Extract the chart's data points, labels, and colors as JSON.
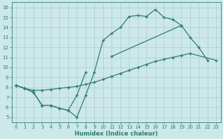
{
  "xlabel": "Humidex (Indice chaleur)",
  "bg_color": "#cce8e8",
  "grid_color": "#b8d8d8",
  "line_color": "#2e7d6e",
  "xlim": [
    -0.5,
    23.5
  ],
  "ylim": [
    4.5,
    16.5
  ],
  "xticks": [
    0,
    1,
    2,
    3,
    4,
    5,
    6,
    7,
    8,
    9,
    10,
    11,
    12,
    13,
    14,
    15,
    16,
    17,
    18,
    19,
    20,
    21,
    22,
    23
  ],
  "yticks": [
    5,
    6,
    7,
    8,
    9,
    10,
    11,
    12,
    13,
    14,
    15,
    16
  ],
  "line1": {
    "x": [
      0,
      1,
      2,
      3,
      4,
      5,
      6,
      7,
      8,
      9,
      10,
      11,
      12,
      13,
      14,
      15,
      16,
      17,
      18,
      19,
      20,
      21,
      22
    ],
    "y": [
      8.2,
      7.9,
      7.5,
      6.2,
      6.2,
      5.9,
      5.7,
      5.0,
      7.2,
      9.5,
      12.7,
      13.4,
      14.0,
      15.1,
      15.2,
      15.1,
      15.8,
      15.0,
      14.8,
      14.2,
      13.0,
      12.0,
      10.7
    ]
  },
  "line2": {
    "segments": [
      {
        "x": [
          0,
          1,
          2,
          3,
          4,
          5,
          6,
          7,
          8
        ],
        "y": [
          8.2,
          7.9,
          7.5,
          6.2,
          6.2,
          5.9,
          5.7,
          7.2,
          9.5
        ]
      },
      {
        "x": [
          11,
          19
        ],
        "y": [
          11.1,
          14.2
        ]
      }
    ]
  },
  "line3": {
    "x": [
      0,
      1,
      2,
      3,
      4,
      5,
      6,
      7,
      8,
      9,
      10,
      11,
      12,
      13,
      14,
      15,
      16,
      17,
      18,
      19,
      20,
      23
    ],
    "y": [
      8.2,
      7.9,
      7.7,
      7.7,
      7.8,
      7.9,
      8.0,
      8.1,
      8.3,
      8.5,
      8.8,
      9.1,
      9.4,
      9.7,
      10.0,
      10.3,
      10.6,
      10.8,
      11.0,
      11.2,
      11.4,
      10.7
    ]
  }
}
